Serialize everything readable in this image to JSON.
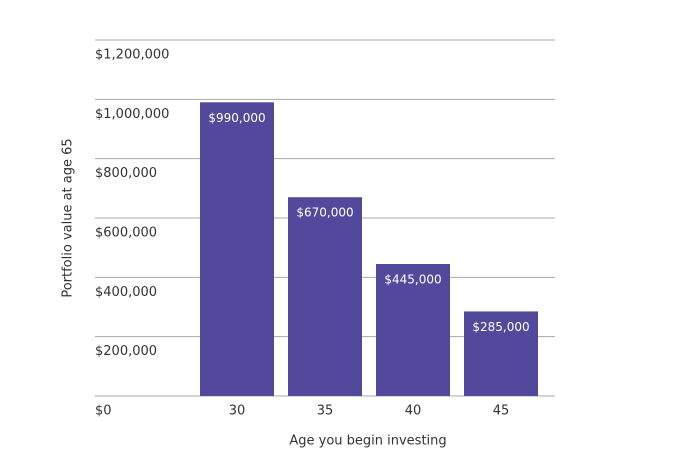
{
  "chart_data": {
    "type": "bar",
    "categories": [
      "30",
      "35",
      "40",
      "45"
    ],
    "values": [
      990000,
      670000,
      445000,
      285000
    ],
    "value_labels": [
      "$990,000",
      "$670,000",
      "$445,000",
      "$285,000"
    ],
    "color": "#52489c",
    "x_label": "Age you begin investing",
    "y_label": "Portfolio value at age 65",
    "ylim": [
      0,
      1200000
    ],
    "yticks": [
      {
        "value": 0,
        "label": "$0"
      },
      {
        "value": 200000,
        "label": "$200,000"
      },
      {
        "value": 400000,
        "label": "$400,000"
      },
      {
        "value": 600000,
        "label": "$600,000"
      },
      {
        "value": 800000,
        "label": "$800,000"
      },
      {
        "value": 1000000,
        "label": "$1,000,000"
      },
      {
        "value": 1200000,
        "label": "$1,200,000"
      }
    ],
    "grid": true
  }
}
